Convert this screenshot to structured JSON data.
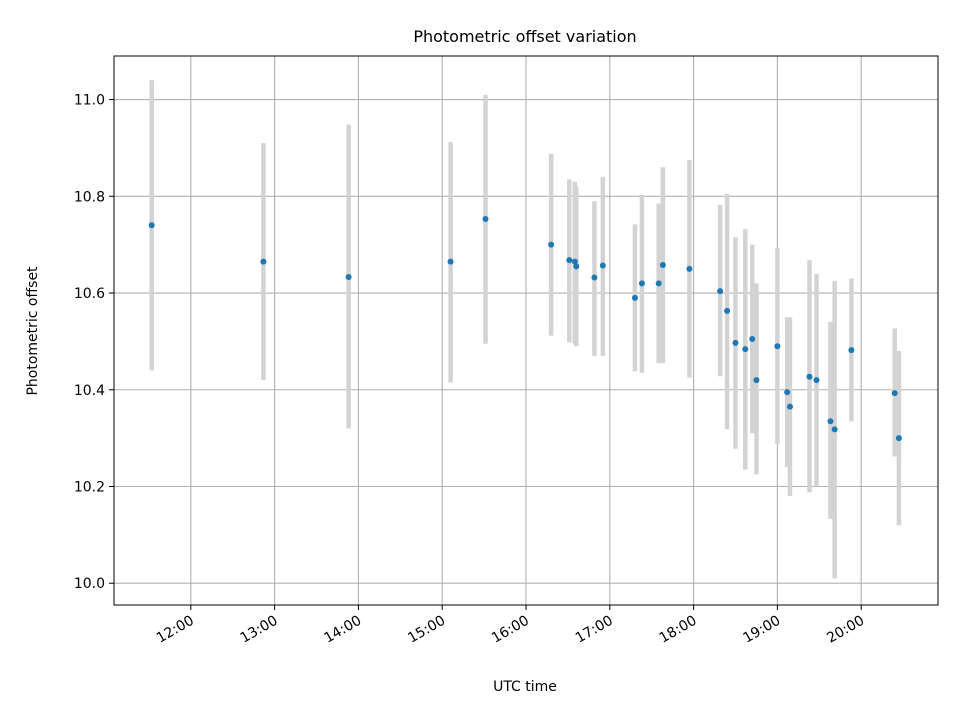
{
  "chart_data": {
    "type": "scatter",
    "title": "Photometric offset variation",
    "xlabel": "UTC time",
    "ylabel": "Photometric offset",
    "x_ticks": [
      "12:00",
      "13:00",
      "14:00",
      "15:00",
      "16:00",
      "17:00",
      "18:00",
      "19:00",
      "20:00"
    ],
    "y_ticks": [
      "10.0",
      "10.2",
      "10.4",
      "10.6",
      "10.8",
      "11.0"
    ],
    "xlim": [
      "11:05",
      "20:55"
    ],
    "ylim": [
      9.955,
      11.09
    ],
    "grid": true,
    "series": [
      {
        "marker_color": "#1f77b4",
        "errorbar_color": "#d3d3d3",
        "points": [
          {
            "x": "11:32",
            "y": 10.74,
            "err_low": 10.44,
            "err_high": 11.04
          },
          {
            "x": "12:52",
            "y": 10.665,
            "err_low": 10.42,
            "err_high": 10.91
          },
          {
            "x": "13:53",
            "y": 10.633,
            "err_low": 10.32,
            "err_high": 10.948
          },
          {
            "x": "15:06",
            "y": 10.665,
            "err_low": 10.415,
            "err_high": 10.912
          },
          {
            "x": "15:31",
            "y": 10.753,
            "err_low": 10.495,
            "err_high": 11.01
          },
          {
            "x": "16:18",
            "y": 10.7,
            "err_low": 10.512,
            "err_high": 10.888
          },
          {
            "x": "16:31",
            "y": 10.668,
            "err_low": 10.498,
            "err_high": 10.835
          },
          {
            "x": "16:35",
            "y": 10.665,
            "err_low": 10.495,
            "err_high": 10.83
          },
          {
            "x": "16:36",
            "y": 10.655,
            "err_low": 10.49,
            "err_high": 10.82
          },
          {
            "x": "16:49",
            "y": 10.632,
            "err_low": 10.47,
            "err_high": 10.79
          },
          {
            "x": "16:55",
            "y": 10.657,
            "err_low": 10.47,
            "err_high": 10.84
          },
          {
            "x": "17:18",
            "y": 10.59,
            "err_low": 10.438,
            "err_high": 10.742
          },
          {
            "x": "17:23",
            "y": 10.62,
            "err_low": 10.435,
            "err_high": 10.803
          },
          {
            "x": "17:35",
            "y": 10.62,
            "err_low": 10.455,
            "err_high": 10.785
          },
          {
            "x": "17:38",
            "y": 10.658,
            "err_low": 10.455,
            "err_high": 10.86
          },
          {
            "x": "17:57",
            "y": 10.65,
            "err_low": 10.425,
            "err_high": 10.875
          },
          {
            "x": "18:19",
            "y": 10.604,
            "err_low": 10.428,
            "err_high": 10.782
          },
          {
            "x": "18:24",
            "y": 10.563,
            "err_low": 10.318,
            "err_high": 10.805
          },
          {
            "x": "18:30",
            "y": 10.497,
            "err_low": 10.278,
            "err_high": 10.715
          },
          {
            "x": "18:37",
            "y": 10.484,
            "err_low": 10.235,
            "err_high": 10.732
          },
          {
            "x": "18:42",
            "y": 10.505,
            "err_low": 10.31,
            "err_high": 10.7
          },
          {
            "x": "18:45",
            "y": 10.42,
            "err_low": 10.225,
            "err_high": 10.62
          },
          {
            "x": "19:00",
            "y": 10.49,
            "err_low": 10.288,
            "err_high": 10.693
          },
          {
            "x": "19:07",
            "y": 10.395,
            "err_low": 10.24,
            "err_high": 10.55
          },
          {
            "x": "19:09",
            "y": 10.365,
            "err_low": 10.18,
            "err_high": 10.55
          },
          {
            "x": "19:23",
            "y": 10.427,
            "err_low": 10.188,
            "err_high": 10.668
          },
          {
            "x": "19:28",
            "y": 10.42,
            "err_low": 10.2,
            "err_high": 10.64
          },
          {
            "x": "19:38",
            "y": 10.335,
            "err_low": 10.133,
            "err_high": 10.54
          },
          {
            "x": "19:41",
            "y": 10.318,
            "err_low": 10.01,
            "err_high": 10.625
          },
          {
            "x": "19:53",
            "y": 10.482,
            "err_low": 10.335,
            "err_high": 10.63
          },
          {
            "x": "20:24",
            "y": 10.393,
            "err_low": 10.262,
            "err_high": 10.527
          },
          {
            "x": "20:27",
            "y": 10.3,
            "err_low": 10.12,
            "err_high": 10.48
          }
        ]
      }
    ]
  }
}
